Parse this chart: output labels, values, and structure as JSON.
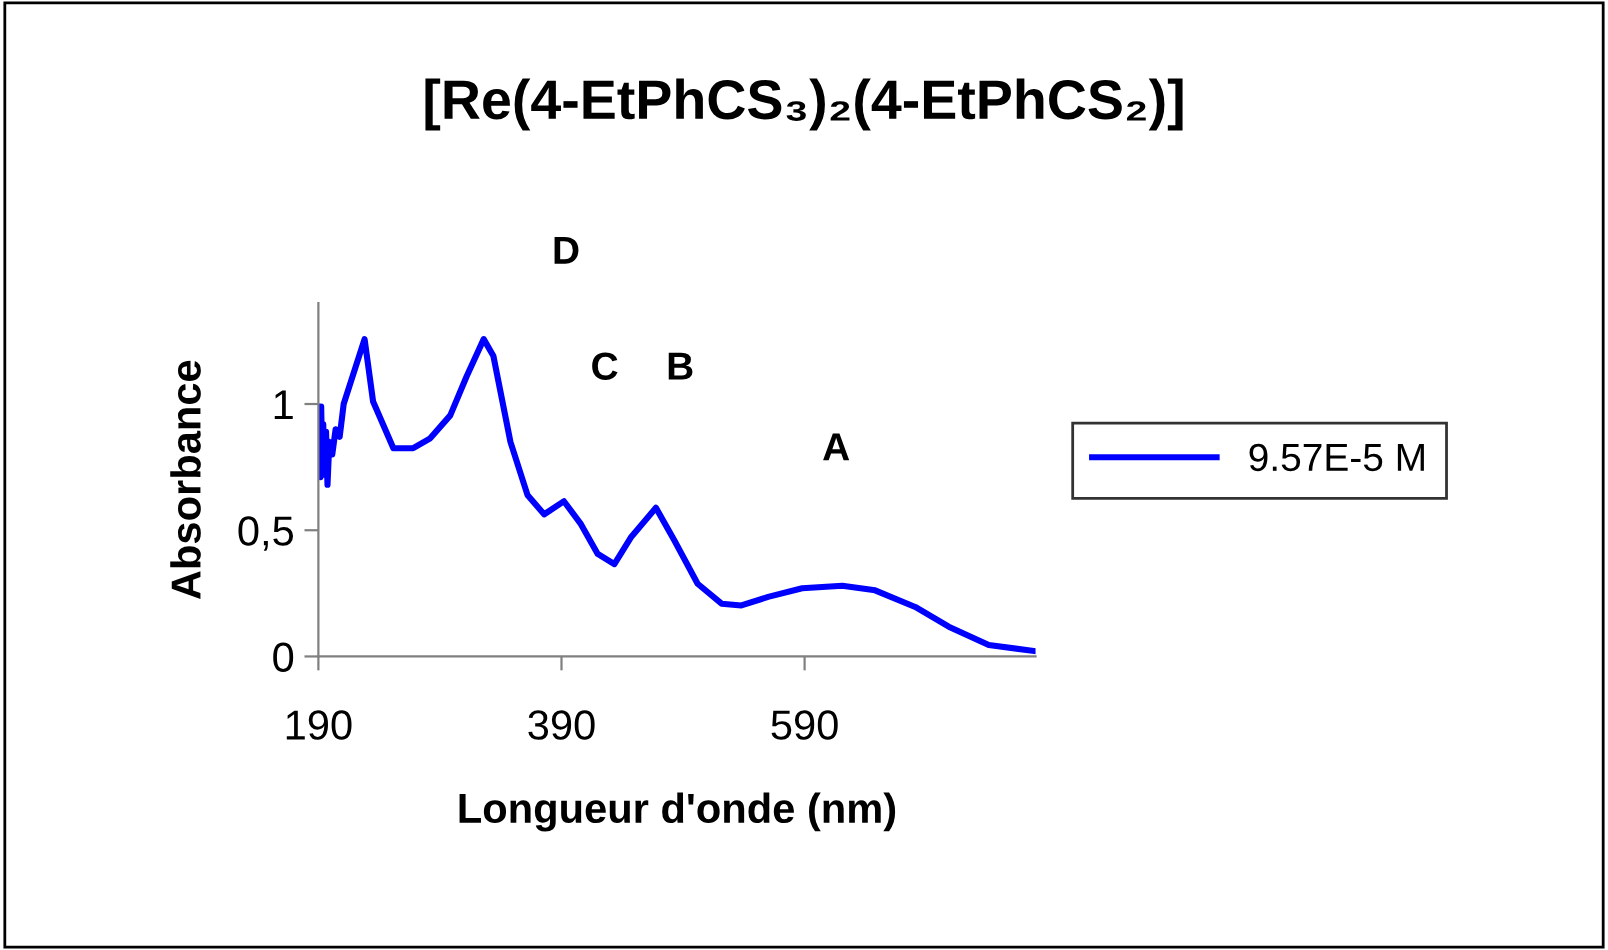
{
  "chart_data": {
    "type": "line",
    "title": "[Re(4-EtPhCS₃)₂(4-EtPhCS₂)]",
    "xlabel": "Longueur d'onde (nm)",
    "ylabel": "Absorbance",
    "xlim": [
      190,
      780
    ],
    "xticks": [
      190,
      390,
      590
    ],
    "ylim": [
      0,
      1.4
    ],
    "yticks": [
      {
        "value": 0,
        "label": "0"
      },
      {
        "value": 0.5,
        "label": "0,5"
      },
      {
        "value": 1,
        "label": "1"
      }
    ],
    "grid": false,
    "legend": "right",
    "marker": "none",
    "line_style": "solid",
    "annotations": [
      "D",
      "C",
      "B",
      "A"
    ],
    "series": [
      {
        "name": "9.57E-5 M",
        "color": "#0000ff",
        "x": [
          190,
          191,
          191.7,
          192.3,
          193,
          194,
          195,
          196.3,
          197.5,
          199,
          201.4,
          204.2,
          207.5,
          210.8,
          228,
          235,
          251.7,
          268,
          282,
          298.5,
          312,
          326,
          334,
          348,
          362,
          375.7,
          392,
          406,
          419.8,
          433.5,
          447,
          467.7,
          483,
          502,
          521.7,
          538,
          560,
          588,
          621,
          648,
          681,
          708.6,
          741.5,
          780
        ],
        "values": [
          0.72,
          0.99,
          0.71,
          0.99,
          0.8,
          0.92,
          0.72,
          0.89,
          0.68,
          0.85,
          0.8,
          0.9,
          0.87,
          1.0,
          1.257,
          1.01,
          0.825,
          0.825,
          0.864,
          0.955,
          1.11,
          1.257,
          1.19,
          0.85,
          0.64,
          0.563,
          0.615,
          0.524,
          0.406,
          0.366,
          0.471,
          0.589,
          0.458,
          0.288,
          0.209,
          0.202,
          0.236,
          0.27,
          0.28,
          0.262,
          0.196,
          0.118,
          0.045,
          0.021
        ]
      }
    ]
  }
}
